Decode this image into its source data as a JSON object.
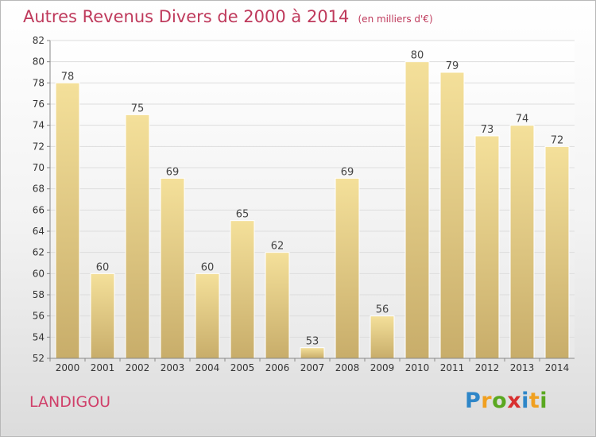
{
  "chart_data": {
    "type": "bar",
    "title": "Autres Revenus Divers de 2000 à 2014",
    "subtitle": "(en milliers d'€)",
    "categories": [
      "2000",
      "2001",
      "2002",
      "2003",
      "2004",
      "2005",
      "2006",
      "2007",
      "2008",
      "2009",
      "2010",
      "2011",
      "2012",
      "2013",
      "2014"
    ],
    "values": [
      78,
      60,
      75,
      69,
      60,
      65,
      62,
      53,
      69,
      56,
      80,
      79,
      73,
      74,
      72
    ],
    "ylim": [
      52,
      82
    ],
    "yticks": [
      52,
      54,
      56,
      58,
      60,
      62,
      64,
      66,
      68,
      70,
      72,
      74,
      76,
      78,
      80,
      82
    ],
    "grid": true,
    "data_labels": true,
    "bar_color": "#e8cf80"
  },
  "location": "LANDIGOU",
  "brand": {
    "letters": [
      "P",
      "r",
      "o",
      "x",
      "i",
      "t",
      "i"
    ],
    "colors": [
      "#2e86c8",
      "#f0a020",
      "#5aa820",
      "#d83030",
      "#2e86c8",
      "#f0a020",
      "#5aa820"
    ]
  }
}
